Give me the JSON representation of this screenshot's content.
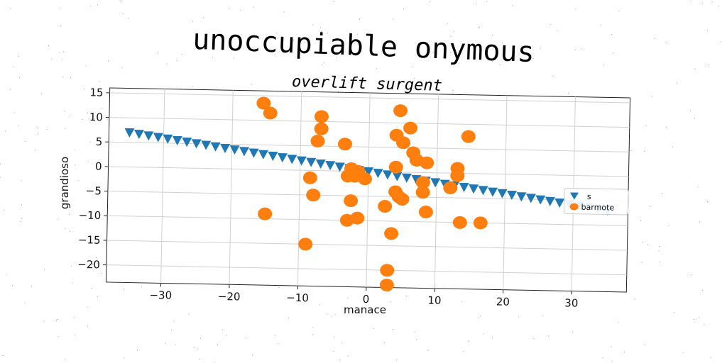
{
  "chart_data": {
    "type": "scatter",
    "title": "unoccupiable onymous",
    "subtitle": "overlift surgent",
    "xlabel": "manace",
    "ylabel": "grandioso",
    "xlim": [
      -38,
      38
    ],
    "ylim": [
      -23.5,
      16
    ],
    "xticks": [
      -30,
      -20,
      -10,
      0,
      10,
      20,
      30
    ],
    "yticks": [
      15,
      10,
      5,
      0,
      -5,
      -10,
      -15,
      -20
    ],
    "xtick_labels": [
      "−30",
      "−20",
      "−10",
      "0",
      "10",
      "20",
      "30"
    ],
    "ytick_labels": [
      "15",
      "10",
      "5",
      "0",
      "−5",
      "−10",
      "−15",
      "−20"
    ],
    "grid": true,
    "legend_position": "right",
    "series": [
      {
        "name": "s",
        "marker": "triangle-down",
        "color": "#1f77b4",
        "x": [
          -35.0,
          -33.6,
          -32.2,
          -30.8,
          -29.4,
          -28.0,
          -26.6,
          -25.2,
          -23.8,
          -22.4,
          -21.0,
          -19.6,
          -18.2,
          -16.8,
          -15.4,
          -14.0,
          -12.6,
          -11.2,
          -9.8,
          -8.4,
          -7.0,
          -5.6,
          -4.2,
          -2.8,
          -1.4,
          0.0,
          1.4,
          2.8,
          4.2,
          5.6,
          7.0,
          8.4,
          9.8,
          11.2,
          12.6,
          14.0,
          15.4,
          16.8,
          18.2,
          19.6,
          21.0,
          22.4,
          23.8,
          25.2,
          26.6,
          28.0,
          29.4,
          30.8,
          32.2,
          33.6,
          35.0
        ],
        "y": [
          7.0,
          6.72,
          6.44,
          6.16,
          5.88,
          5.6,
          5.32,
          5.04,
          4.76,
          4.48,
          4.2,
          3.92,
          3.64,
          3.36,
          3.08,
          2.8,
          2.52,
          2.24,
          1.96,
          1.68,
          1.4,
          1.12,
          0.84,
          0.56,
          0.28,
          0.0,
          -0.28,
          -0.56,
          -0.84,
          -1.12,
          -1.4,
          -1.68,
          -1.96,
          -2.24,
          -2.52,
          -2.8,
          -3.08,
          -3.36,
          -3.64,
          -3.92,
          -4.2,
          -4.48,
          -4.76,
          -5.04,
          -5.32,
          -5.6,
          -5.88,
          -6.16,
          -6.44,
          -6.72,
          -7.0
        ]
      },
      {
        "name": "barmote",
        "marker": "circle",
        "color": "#ff7f0e",
        "x": [
          -15.5,
          -14.5,
          -7,
          -7,
          -7.5,
          -3.5,
          -8.5,
          -8,
          -15,
          -9,
          -3,
          -2.5,
          -2.5,
          -3,
          -1.5,
          -0.5,
          -2,
          -1.5,
          4.5,
          6,
          4,
          5,
          6.5,
          7,
          8.5,
          4,
          8,
          8,
          4,
          4.5,
          5,
          2.5,
          8.5,
          3.5,
          3,
          3,
          13,
          13,
          14.5,
          12,
          13.5,
          16.5
        ],
        "y": [
          13.5,
          11.5,
          11,
          8.5,
          6,
          5.5,
          -1.5,
          -5,
          -9,
          -15,
          -1,
          0.5,
          -6,
          -10,
          -9.5,
          -1.5,
          -1,
          0,
          12.5,
          9,
          7.5,
          6,
          4,
          2.5,
          2,
          1,
          -2,
          -4,
          -4,
          -5,
          -5.5,
          -7,
          -8,
          -12.5,
          -20,
          -23,
          1,
          -0.5,
          7.5,
          -3,
          -10,
          -10
        ]
      }
    ]
  }
}
